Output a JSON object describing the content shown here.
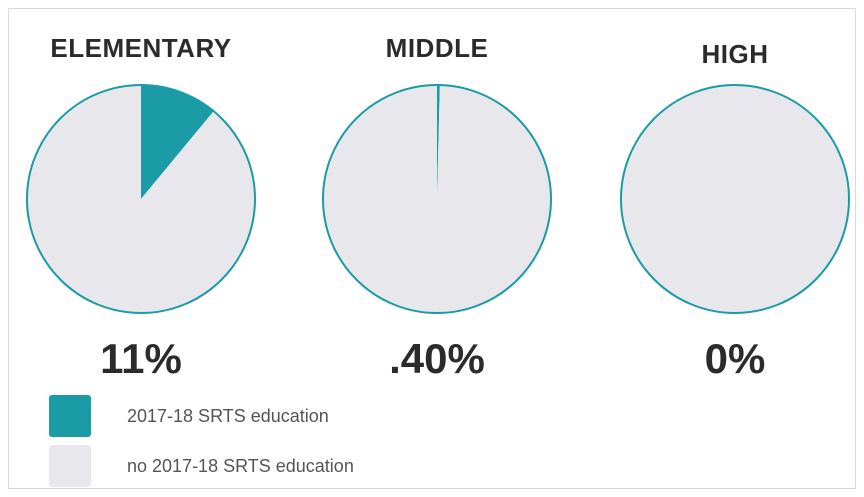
{
  "chart_data": [
    {
      "type": "pie",
      "title": "ELEMENTARY",
      "label": "11%",
      "slices": [
        {
          "name": "2017-18 SRTS education",
          "value": 11
        },
        {
          "name": "no 2017-18 SRTS education",
          "value": 89
        }
      ]
    },
    {
      "type": "pie",
      "title": "MIDDLE",
      "label": ".40%",
      "slices": [
        {
          "name": "2017-18 SRTS education",
          "value": 0.4
        },
        {
          "name": "no 2017-18 SRTS education",
          "value": 99.6
        }
      ]
    },
    {
      "type": "pie",
      "title": "HIGH",
      "label": "0%",
      "slices": [
        {
          "name": "2017-18 SRTS education",
          "value": 0
        },
        {
          "name": "no 2017-18 SRTS education",
          "value": 100
        }
      ]
    }
  ],
  "legend": [
    {
      "label": "2017-18 SRTS education",
      "color": "#1a9ba5"
    },
    {
      "label": "no 2017-18 SRTS education",
      "color": "#e8e8ec"
    }
  ],
  "colors": {
    "accent": "#1a9ba5",
    "rest": "#e8e8ec",
    "outline": "#1a9ba5"
  }
}
